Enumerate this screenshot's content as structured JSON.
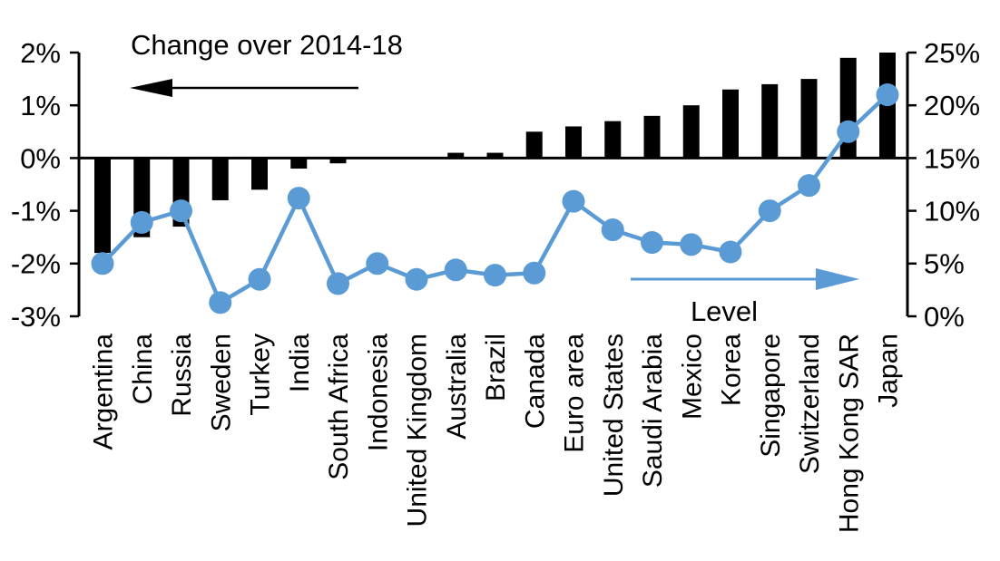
{
  "annotations": {
    "change_arrow_label": "Change over 2014-18",
    "change_arrow_direction": "left",
    "level_arrow_label": "Level",
    "level_arrow_direction": "right"
  },
  "colors": {
    "bar": "#000000",
    "line": "#5B9BD5",
    "text": "#000000",
    "background": "#FFFFFF"
  },
  "chart_data": {
    "type": "combo-bar-line",
    "title": "",
    "grid": false,
    "categories": [
      "Argentina",
      "China",
      "Russia",
      "Sweden",
      "Turkey",
      "India",
      "South Africa",
      "Indonesia",
      "United Kingdom",
      "Australia",
      "Brazil",
      "Canada",
      "Euro area",
      "United States",
      "Saudi Arabia",
      "Mexico",
      "Korea",
      "Singapore",
      "Switzerland",
      "Hong Kong SAR",
      "Japan"
    ],
    "series": [
      {
        "name": "Change over 2014-18",
        "type": "bar",
        "axis": "left",
        "color": "#000000",
        "values": [
          -1.8,
          -1.5,
          -1.3,
          -0.8,
          -0.6,
          -0.2,
          -0.1,
          0,
          0,
          0.1,
          0.1,
          0.5,
          0.6,
          0.7,
          0.8,
          1.0,
          1.3,
          1.4,
          1.5,
          1.9,
          2.0
        ]
      },
      {
        "name": "Level",
        "type": "line",
        "axis": "right",
        "color": "#5B9BD5",
        "values": [
          5.0,
          8.9,
          10.0,
          1.3,
          3.5,
          11.2,
          3.1,
          5.0,
          3.5,
          4.4,
          3.9,
          4.1,
          10.9,
          8.2,
          7.0,
          6.8,
          6.1,
          10.0,
          12.4,
          17.5,
          21.0
        ]
      }
    ],
    "left_axis": {
      "min": -3,
      "max": 2,
      "tick_values": [
        2,
        1,
        0,
        -1,
        -2,
        -3
      ],
      "tick_labels": [
        "2%",
        "1%",
        "0%",
        "-1%",
        "-2%",
        "-3%"
      ]
    },
    "right_axis": {
      "min": 0,
      "max": 25,
      "tick_values": [
        25,
        20,
        15,
        10,
        5,
        0
      ],
      "tick_labels": [
        "25%",
        "20%",
        "15%",
        "10%",
        "5%",
        "0%"
      ]
    }
  }
}
